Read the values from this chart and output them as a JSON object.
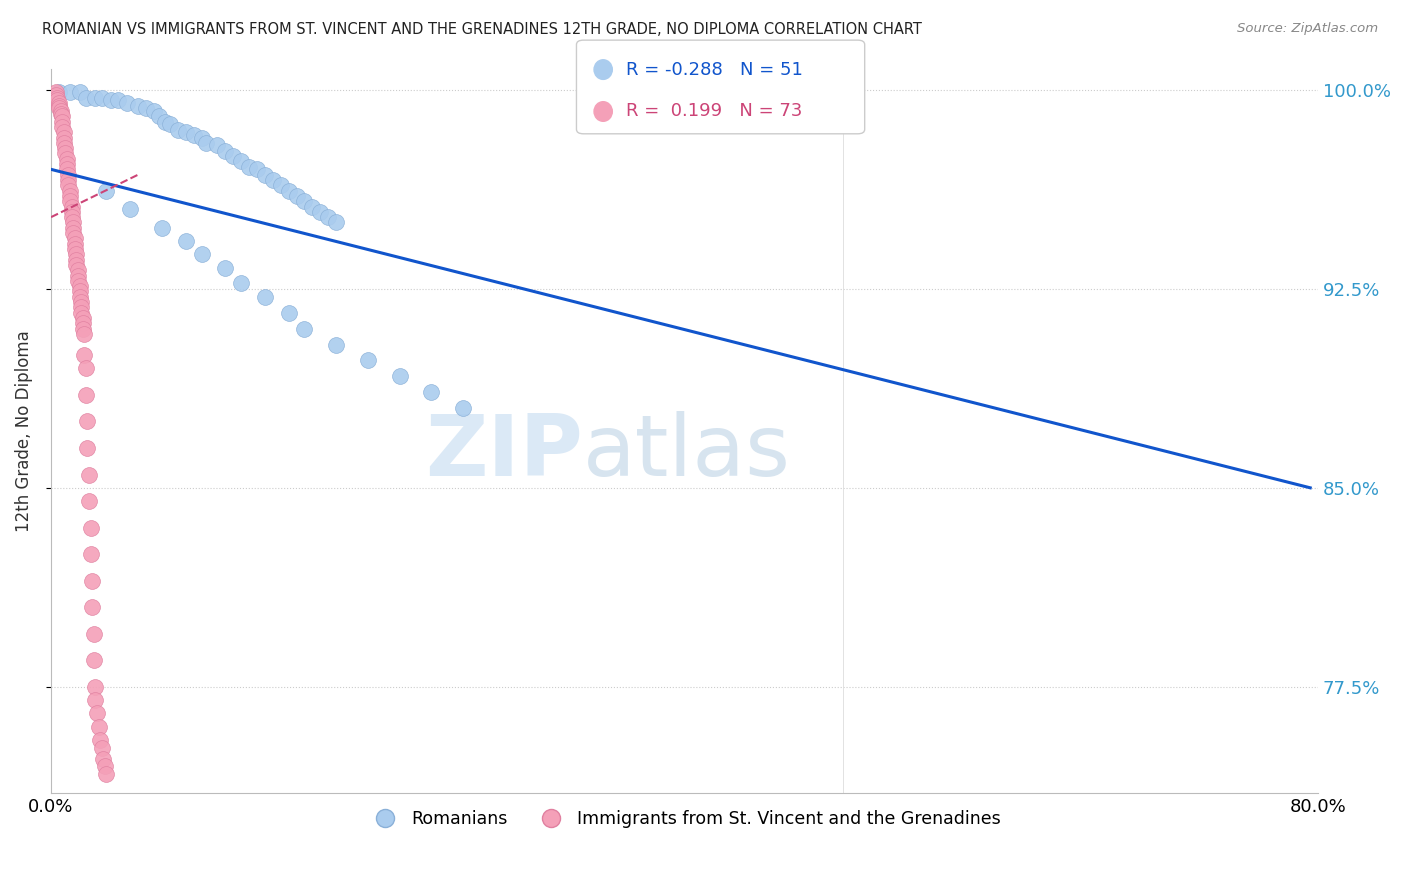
{
  "title": "ROMANIAN VS IMMIGRANTS FROM ST. VINCENT AND THE GRENADINES 12TH GRADE, NO DIPLOMA CORRELATION CHART",
  "source": "Source: ZipAtlas.com",
  "ylabel": "12th Grade, No Diploma",
  "r_blue": -0.288,
  "n_blue": 51,
  "r_pink": 0.199,
  "n_pink": 73,
  "xlim": [
    0.0,
    0.8
  ],
  "ylim": [
    0.735,
    1.008
  ],
  "yticks": [
    0.775,
    0.85,
    0.925,
    1.0
  ],
  "ytick_labels": [
    "77.5%",
    "85.0%",
    "92.5%",
    "100.0%"
  ],
  "xticks": [
    0.0,
    0.1,
    0.2,
    0.3,
    0.4,
    0.5,
    0.6,
    0.7,
    0.8
  ],
  "blue_color": "#aaccee",
  "pink_color": "#f4a0b8",
  "trend_blue_color": "#1155cc",
  "trend_pink_color": "#cc4477",
  "legend_blue_label": "Romanians",
  "legend_pink_label": "Immigrants from St. Vincent and the Grenadines",
  "watermark_zip": "ZIP",
  "watermark_atlas": "atlas",
  "blue_trend_x": [
    0.0,
    0.795
  ],
  "blue_trend_y": [
    0.97,
    0.85
  ],
  "pink_trend_x": [
    0.0,
    0.055
  ],
  "pink_trend_y": [
    0.952,
    0.968
  ],
  "blue_dots": [
    [
      0.005,
      0.999
    ],
    [
      0.012,
      0.999
    ],
    [
      0.018,
      0.999
    ],
    [
      0.022,
      0.997
    ],
    [
      0.028,
      0.997
    ],
    [
      0.032,
      0.997
    ],
    [
      0.038,
      0.996
    ],
    [
      0.042,
      0.996
    ],
    [
      0.048,
      0.995
    ],
    [
      0.055,
      0.994
    ],
    [
      0.06,
      0.993
    ],
    [
      0.065,
      0.992
    ],
    [
      0.068,
      0.99
    ],
    [
      0.072,
      0.988
    ],
    [
      0.075,
      0.987
    ],
    [
      0.08,
      0.985
    ],
    [
      0.085,
      0.984
    ],
    [
      0.09,
      0.983
    ],
    [
      0.095,
      0.982
    ],
    [
      0.098,
      0.98
    ],
    [
      0.105,
      0.979
    ],
    [
      0.11,
      0.977
    ],
    [
      0.115,
      0.975
    ],
    [
      0.12,
      0.973
    ],
    [
      0.125,
      0.971
    ],
    [
      0.13,
      0.97
    ],
    [
      0.135,
      0.968
    ],
    [
      0.14,
      0.966
    ],
    [
      0.145,
      0.964
    ],
    [
      0.15,
      0.962
    ],
    [
      0.155,
      0.96
    ],
    [
      0.16,
      0.958
    ],
    [
      0.165,
      0.956
    ],
    [
      0.17,
      0.954
    ],
    [
      0.175,
      0.952
    ],
    [
      0.18,
      0.95
    ],
    [
      0.035,
      0.962
    ],
    [
      0.05,
      0.955
    ],
    [
      0.07,
      0.948
    ],
    [
      0.085,
      0.943
    ],
    [
      0.095,
      0.938
    ],
    [
      0.11,
      0.933
    ],
    [
      0.12,
      0.927
    ],
    [
      0.135,
      0.922
    ],
    [
      0.15,
      0.916
    ],
    [
      0.16,
      0.91
    ],
    [
      0.18,
      0.904
    ],
    [
      0.2,
      0.898
    ],
    [
      0.22,
      0.892
    ],
    [
      0.24,
      0.886
    ],
    [
      0.26,
      0.88
    ]
  ],
  "pink_dots": [
    [
      0.003,
      0.999
    ],
    [
      0.003,
      0.998
    ],
    [
      0.004,
      0.997
    ],
    [
      0.004,
      0.996
    ],
    [
      0.005,
      0.995
    ],
    [
      0.005,
      0.994
    ],
    [
      0.005,
      0.993
    ],
    [
      0.006,
      0.992
    ],
    [
      0.006,
      0.991
    ],
    [
      0.007,
      0.99
    ],
    [
      0.007,
      0.988
    ],
    [
      0.007,
      0.986
    ],
    [
      0.008,
      0.984
    ],
    [
      0.008,
      0.982
    ],
    [
      0.008,
      0.98
    ],
    [
      0.009,
      0.978
    ],
    [
      0.009,
      0.976
    ],
    [
      0.01,
      0.974
    ],
    [
      0.01,
      0.972
    ],
    [
      0.01,
      0.97
    ],
    [
      0.011,
      0.968
    ],
    [
      0.011,
      0.966
    ],
    [
      0.011,
      0.964
    ],
    [
      0.012,
      0.962
    ],
    [
      0.012,
      0.96
    ],
    [
      0.012,
      0.958
    ],
    [
      0.013,
      0.956
    ],
    [
      0.013,
      0.954
    ],
    [
      0.013,
      0.952
    ],
    [
      0.014,
      0.95
    ],
    [
      0.014,
      0.948
    ],
    [
      0.014,
      0.946
    ],
    [
      0.015,
      0.944
    ],
    [
      0.015,
      0.942
    ],
    [
      0.015,
      0.94
    ],
    [
      0.016,
      0.938
    ],
    [
      0.016,
      0.936
    ],
    [
      0.016,
      0.934
    ],
    [
      0.017,
      0.932
    ],
    [
      0.017,
      0.93
    ],
    [
      0.017,
      0.928
    ],
    [
      0.018,
      0.926
    ],
    [
      0.018,
      0.924
    ],
    [
      0.018,
      0.922
    ],
    [
      0.019,
      0.92
    ],
    [
      0.019,
      0.918
    ],
    [
      0.019,
      0.916
    ],
    [
      0.02,
      0.914
    ],
    [
      0.02,
      0.912
    ],
    [
      0.02,
      0.91
    ],
    [
      0.021,
      0.908
    ],
    [
      0.021,
      0.9
    ],
    [
      0.022,
      0.895
    ],
    [
      0.022,
      0.885
    ],
    [
      0.023,
      0.875
    ],
    [
      0.023,
      0.865
    ],
    [
      0.024,
      0.855
    ],
    [
      0.024,
      0.845
    ],
    [
      0.025,
      0.835
    ],
    [
      0.025,
      0.825
    ],
    [
      0.026,
      0.815
    ],
    [
      0.026,
      0.805
    ],
    [
      0.027,
      0.795
    ],
    [
      0.027,
      0.785
    ],
    [
      0.028,
      0.775
    ],
    [
      0.028,
      0.77
    ],
    [
      0.029,
      0.765
    ],
    [
      0.03,
      0.76
    ],
    [
      0.031,
      0.755
    ],
    [
      0.032,
      0.752
    ],
    [
      0.033,
      0.748
    ],
    [
      0.034,
      0.745
    ],
    [
      0.035,
      0.742
    ]
  ]
}
